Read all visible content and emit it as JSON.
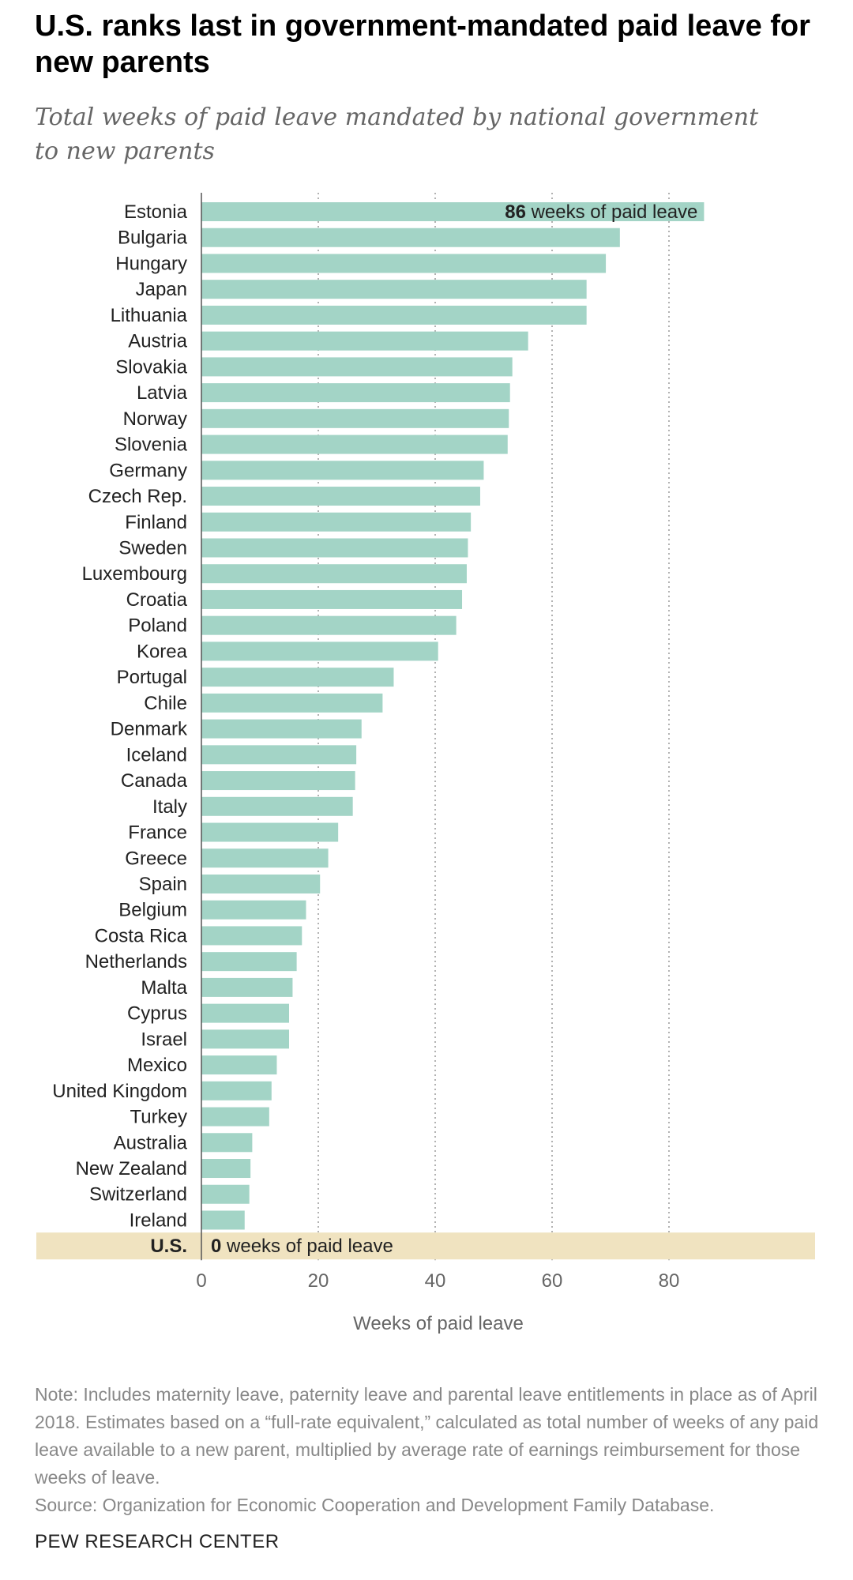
{
  "chart_data": {
    "type": "bar",
    "orientation": "horizontal",
    "title": "U.S. ranks last in government-mandated paid leave for new parents",
    "subtitle": "Total weeks of paid leave mandated by national government to new parents",
    "xlabel": "Weeks of paid leave",
    "xticks": [
      0,
      20,
      40,
      60,
      80
    ],
    "xlim": [
      0,
      100
    ],
    "grid": "vertical-dotted",
    "categories": [
      "Estonia",
      "Bulgaria",
      "Hungary",
      "Japan",
      "Lithuania",
      "Austria",
      "Slovakia",
      "Latvia",
      "Norway",
      "Slovenia",
      "Germany",
      "Czech Rep.",
      "Finland",
      "Sweden",
      "Luxembourg",
      "Croatia",
      "Poland",
      "Korea",
      "Portugal",
      "Chile",
      "Denmark",
      "Iceland",
      "Canada",
      "Italy",
      "France",
      "Greece",
      "Spain",
      "Belgium",
      "Costa Rica",
      "Netherlands",
      "Malta",
      "Cyprus",
      "Israel",
      "Mexico",
      "United Kingdom",
      "Turkey",
      "Australia",
      "New Zealand",
      "Switzerland",
      "Ireland",
      "U.S."
    ],
    "values": [
      86,
      71.6,
      69.2,
      65.9,
      65.9,
      55.9,
      53.2,
      52.8,
      52.6,
      52.4,
      48.3,
      47.7,
      46.1,
      45.6,
      45.4,
      44.6,
      43.6,
      40.5,
      32.9,
      31,
      27.4,
      26.5,
      26.3,
      25.9,
      23.4,
      21.7,
      20.3,
      17.9,
      17.2,
      16.3,
      15.6,
      15,
      15,
      12.9,
      12,
      11.6,
      8.7,
      8.4,
      8.2,
      7.4,
      0
    ],
    "series": [
      {
        "name": "",
        "color": "#a3d4c6"
      }
    ],
    "highlight": {
      "category": "U.S.",
      "band_color": "#f0e3c0"
    },
    "annotations": [
      {
        "category": "Estonia",
        "value": "86",
        "text": " weeks of paid leave"
      },
      {
        "category": "U.S.",
        "value": "0",
        "text": " weeks of paid leave"
      }
    ]
  },
  "note": "Note: Includes maternity leave, paternity leave and parental leave entitlements in place as of April 2018. Estimates based on a “full-rate equivalent,” calculated as total number of weeks of any paid leave available to a new parent, multiplied by average rate of earnings reimbursement for those weeks of leave.",
  "source": "Source: Organization for Economic Cooperation and Development Family Database.",
  "brand": "PEW RESEARCH CENTER"
}
